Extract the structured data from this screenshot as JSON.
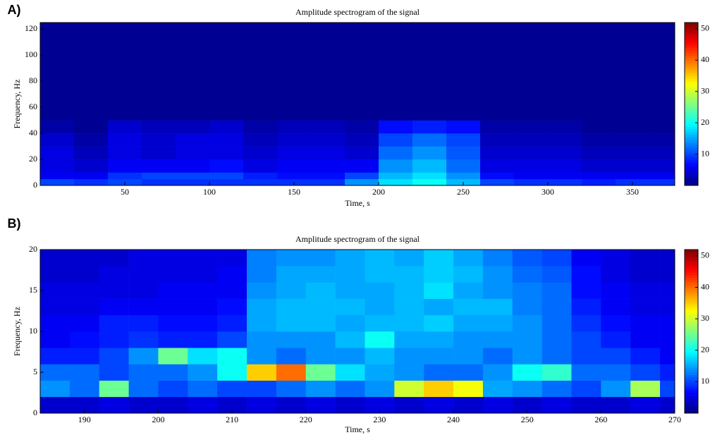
{
  "chart_data": [
    {
      "type": "heatmap",
      "panel_label": "A)",
      "title": "Amplitude spectrogram of the signal",
      "x_label": "Time, s",
      "y_label": "Frequency, Hz",
      "colormap": "jet",
      "xlim": [
        0,
        375
      ],
      "ylim": [
        0,
        125
      ],
      "clim": [
        0,
        52
      ],
      "xticks": [
        50,
        100,
        150,
        200,
        250,
        300,
        350
      ],
      "yticks": [
        0,
        20,
        40,
        60,
        80,
        100,
        120
      ],
      "cticks": [
        10,
        20,
        30,
        40,
        50
      ],
      "x_bins": [
        0,
        20,
        40,
        60,
        80,
        100,
        120,
        140,
        160,
        180,
        200,
        220,
        240,
        260,
        280,
        300,
        320,
        340,
        360,
        375
      ],
      "y_bins": [
        0,
        5,
        10,
        20,
        30,
        40,
        50,
        125
      ],
      "z": [
        [
          10,
          9,
          10,
          9,
          9,
          9,
          9,
          9,
          9,
          14,
          18,
          20,
          16,
          10,
          9,
          9,
          8,
          9,
          9
        ],
        [
          6,
          6,
          9,
          10,
          10,
          10,
          8,
          7,
          7,
          10,
          16,
          18,
          14,
          7,
          6,
          6,
          6,
          6,
          6
        ],
        [
          5,
          4,
          6,
          6,
          6,
          7,
          5,
          6,
          6,
          6,
          14,
          16,
          12,
          5,
          5,
          5,
          4,
          4,
          4
        ],
        [
          5,
          3,
          5,
          4,
          5,
          5,
          4,
          5,
          5,
          4,
          12,
          14,
          11,
          4,
          4,
          4,
          3,
          3,
          3
        ],
        [
          4,
          2,
          5,
          4,
          5,
          5,
          3,
          4,
          4,
          3,
          10,
          12,
          10,
          3,
          3,
          3,
          2,
          2,
          2
        ],
        [
          2,
          1,
          4,
          3,
          3,
          4,
          2,
          3,
          3,
          2,
          7,
          8,
          7,
          2,
          2,
          2,
          1,
          1,
          1
        ],
        [
          1,
          1,
          1,
          1,
          1,
          1,
          1,
          1,
          1,
          1,
          1,
          1,
          1,
          1,
          1,
          1,
          1,
          1,
          1
        ]
      ]
    },
    {
      "type": "heatmap",
      "panel_label": "B)",
      "title": "Amplitude spectrogram of the signal",
      "x_label": "Time, s",
      "y_label": "Frequency, Hz",
      "colormap": "jet",
      "xlim": [
        184,
        270
      ],
      "ylim": [
        0,
        20
      ],
      "clim": [
        0,
        52
      ],
      "xticks": [
        190,
        200,
        210,
        220,
        230,
        240,
        250,
        260,
        270
      ],
      "yticks": [
        0,
        5,
        10,
        15,
        20
      ],
      "cticks": [
        10,
        20,
        30,
        40,
        50
      ],
      "x_bins": [
        184,
        188,
        192,
        196,
        200,
        204,
        208,
        212,
        216,
        220,
        224,
        228,
        232,
        236,
        240,
        244,
        248,
        252,
        256,
        260,
        264,
        268,
        270
      ],
      "y_bins": [
        0,
        2,
        4,
        6,
        8,
        10,
        12,
        14,
        16,
        18,
        20
      ],
      "z": [
        [
          4,
          4,
          5,
          4,
          4,
          5,
          4,
          5,
          4,
          5,
          4,
          5,
          4,
          5,
          4,
          5,
          4,
          5,
          4,
          4,
          5,
          4
        ],
        [
          14,
          12,
          25,
          12,
          10,
          12,
          10,
          10,
          12,
          14,
          12,
          14,
          30,
          35,
          32,
          15,
          14,
          12,
          10,
          14,
          28,
          10
        ],
        [
          12,
          12,
          10,
          12,
          12,
          14,
          20,
          35,
          40,
          25,
          18,
          15,
          14,
          12,
          12,
          14,
          20,
          22,
          12,
          12,
          10,
          8
        ],
        [
          8,
          8,
          10,
          14,
          25,
          18,
          20,
          14,
          12,
          14,
          14,
          16,
          14,
          14,
          14,
          12,
          14,
          12,
          10,
          10,
          8,
          6
        ],
        [
          6,
          7,
          8,
          9,
          8,
          8,
          10,
          14,
          14,
          14,
          16,
          20,
          15,
          15,
          14,
          14,
          14,
          12,
          10,
          8,
          6,
          6
        ],
        [
          6,
          6,
          8,
          8,
          7,
          7,
          8,
          15,
          16,
          16,
          15,
          16,
          16,
          17,
          15,
          15,
          14,
          12,
          9,
          7,
          6,
          6
        ],
        [
          5,
          5,
          6,
          6,
          6,
          6,
          7,
          15,
          16,
          16,
          16,
          15,
          16,
          15,
          16,
          16,
          13,
          12,
          8,
          6,
          5,
          5
        ],
        [
          5,
          5,
          5,
          5,
          6,
          6,
          6,
          14,
          15,
          16,
          15,
          15,
          16,
          18,
          15,
          14,
          13,
          12,
          7,
          6,
          5,
          5
        ],
        [
          4,
          4,
          5,
          5,
          5,
          5,
          6,
          13,
          15,
          15,
          15,
          16,
          16,
          17,
          16,
          14,
          12,
          11,
          7,
          5,
          4,
          4
        ],
        [
          4,
          4,
          4,
          5,
          5,
          5,
          5,
          13,
          14,
          14,
          15,
          16,
          15,
          17,
          15,
          13,
          11,
          10,
          6,
          5,
          4,
          4
        ]
      ]
    }
  ]
}
